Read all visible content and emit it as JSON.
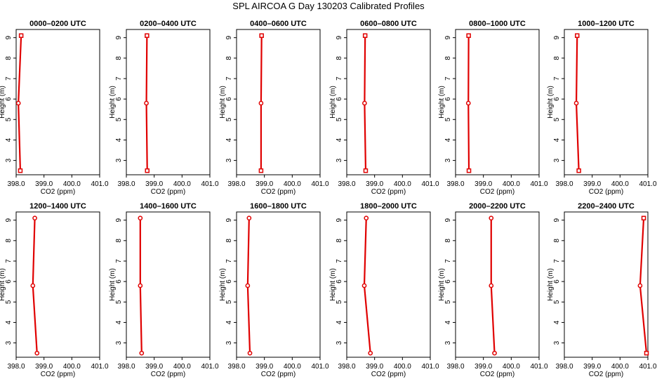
{
  "page_title": "SPL AIRCOA G  Day 130203  Calibrated Profiles",
  "common": {
    "xlabel": "CO2 (ppm)",
    "ylabel": "Height (m)",
    "xlim": [
      398.0,
      401.0
    ],
    "ylim": [
      2.3,
      9.4
    ],
    "xticks": [
      "398.0",
      "399.0",
      "400.0",
      "401.0"
    ],
    "xtick_values": [
      398.0,
      399.0,
      400.0,
      401.0
    ],
    "yticks": [
      "3",
      "4",
      "5",
      "6",
      "7",
      "8",
      "9"
    ],
    "ytick_values": [
      3,
      4,
      5,
      6,
      7,
      8,
      9
    ],
    "line_color": "#e00000",
    "grid": false
  },
  "chart_data": [
    {
      "type": "line",
      "title": "0000–0200 UTC",
      "heights": [
        2.5,
        5.8,
        9.1
      ],
      "values": [
        398.15,
        398.08,
        398.18
      ],
      "marker": "square-top"
    },
    {
      "type": "line",
      "title": "0200–0400 UTC",
      "heights": [
        2.5,
        5.8,
        9.1
      ],
      "values": [
        398.75,
        398.72,
        398.74
      ],
      "marker": "square-top"
    },
    {
      "type": "line",
      "title": "0400–0600 UTC",
      "heights": [
        2.5,
        5.8,
        9.1
      ],
      "values": [
        398.88,
        398.88,
        398.9
      ],
      "marker": "square-top"
    },
    {
      "type": "line",
      "title": "0600–0800 UTC",
      "heights": [
        2.5,
        5.8,
        9.1
      ],
      "values": [
        398.68,
        398.64,
        398.66
      ],
      "marker": "square-top"
    },
    {
      "type": "line",
      "title": "0800–1000 UTC",
      "heights": [
        2.5,
        5.8,
        9.1
      ],
      "values": [
        398.48,
        398.46,
        398.47
      ],
      "marker": "square-top"
    },
    {
      "type": "line",
      "title": "1000–1200 UTC",
      "heights": [
        2.5,
        5.8,
        9.1
      ],
      "values": [
        398.52,
        398.43,
        398.46
      ],
      "marker": "square-top"
    },
    {
      "type": "line",
      "title": "1200–1400 UTC",
      "heights": [
        2.5,
        5.8,
        9.1
      ],
      "values": [
        398.75,
        398.6,
        398.67
      ],
      "marker": "circle"
    },
    {
      "type": "line",
      "title": "1400–1600 UTC",
      "heights": [
        2.5,
        5.8,
        9.1
      ],
      "values": [
        398.55,
        398.5,
        398.5
      ],
      "marker": "circle"
    },
    {
      "type": "line",
      "title": "1600–1800 UTC",
      "heights": [
        2.5,
        5.8,
        9.1
      ],
      "values": [
        398.48,
        398.4,
        398.45
      ],
      "marker": "circle"
    },
    {
      "type": "line",
      "title": "1800–2000 UTC",
      "heights": [
        2.5,
        5.8,
        9.1
      ],
      "values": [
        398.85,
        398.63,
        398.7
      ],
      "marker": "circle"
    },
    {
      "type": "line",
      "title": "2000–2200 UTC",
      "heights": [
        2.5,
        5.8,
        9.1
      ],
      "values": [
        399.4,
        399.28,
        399.28
      ],
      "marker": "circle"
    },
    {
      "type": "line",
      "title": "2200–2400 UTC",
      "heights": [
        2.5,
        5.8,
        9.1
      ],
      "values": [
        400.95,
        400.72,
        400.85
      ],
      "marker": "square-top"
    }
  ]
}
